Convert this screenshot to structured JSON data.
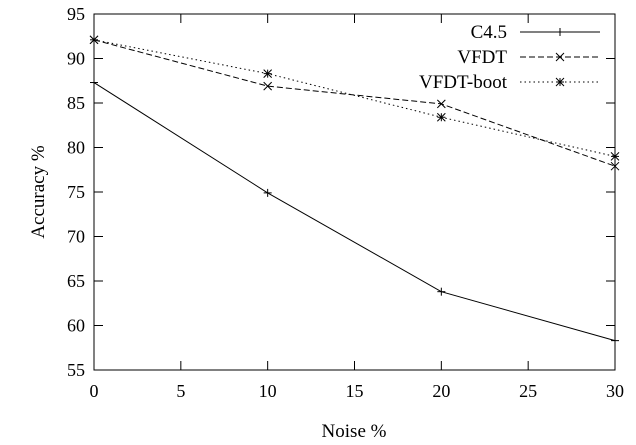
{
  "chart_data": {
    "type": "line",
    "xlabel": "Noise %",
    "ylabel": "Accuracy %",
    "xlim": [
      0,
      30
    ],
    "ylim": [
      55,
      95
    ],
    "xticks": [
      0,
      5,
      10,
      15,
      20,
      25,
      30
    ],
    "yticks": [
      55,
      60,
      65,
      70,
      75,
      80,
      85,
      90,
      95
    ],
    "grid": false,
    "legend_position": "top-right",
    "series": [
      {
        "name": "C4.5",
        "marker": "plus",
        "dash": "solid",
        "x": [
          0,
          10,
          20,
          30
        ],
        "y": [
          87.3,
          74.9,
          63.8,
          58.3
        ]
      },
      {
        "name": "VFDT",
        "marker": "cross",
        "dash": "dashed",
        "x": [
          0,
          10,
          20,
          30
        ],
        "y": [
          92.1,
          86.9,
          84.9,
          77.9
        ]
      },
      {
        "name": "VFDT-boot",
        "marker": "star",
        "dash": "dotted",
        "x": [
          0,
          10,
          20,
          30
        ],
        "y": [
          92.1,
          88.3,
          83.4,
          79.0
        ]
      }
    ]
  }
}
